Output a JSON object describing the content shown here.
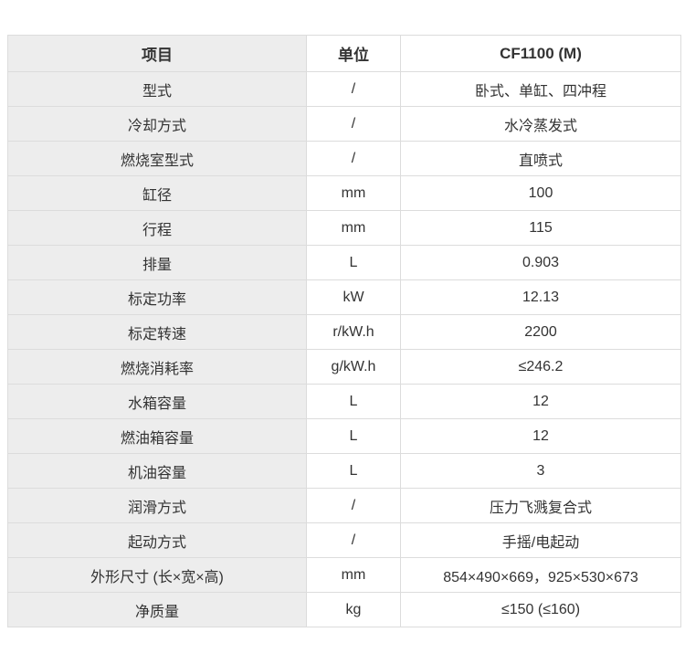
{
  "colors": {
    "item_column_bg": "#ededed",
    "border": "#dcdcdc",
    "text": "#333333",
    "page_bg": "#ffffff"
  },
  "table": {
    "headers": {
      "item": "项目",
      "unit": "单位",
      "model": "CF1100 (M)"
    },
    "rows": [
      {
        "item": "型式",
        "unit": "/",
        "value": "卧式、单缸、四冲程"
      },
      {
        "item": "冷却方式",
        "unit": "/",
        "value": "水冷蒸发式"
      },
      {
        "item": "燃烧室型式",
        "unit": "/",
        "value": "直喷式"
      },
      {
        "item": "缸径",
        "unit": "mm",
        "value": "100"
      },
      {
        "item": "行程",
        "unit": "mm",
        "value": "115"
      },
      {
        "item": "排量",
        "unit": "L",
        "value": "0.903"
      },
      {
        "item": "标定功率",
        "unit": "kW",
        "value": "12.13"
      },
      {
        "item": "标定转速",
        "unit": "r/kW.h",
        "value": "2200"
      },
      {
        "item": "燃烧消耗率",
        "unit": "g/kW.h",
        "value": "≤246.2"
      },
      {
        "item": "水箱容量",
        "unit": "L",
        "value": "12"
      },
      {
        "item": "燃油箱容量",
        "unit": "L",
        "value": "12"
      },
      {
        "item": "机油容量",
        "unit": "L",
        "value": "3"
      },
      {
        "item": "润滑方式",
        "unit": "/",
        "value": "压力飞溅复合式"
      },
      {
        "item": "起动方式",
        "unit": "/",
        "value": "手摇/电起动"
      },
      {
        "item": "外形尺寸 (长×宽×高)",
        "unit": "mm",
        "value": "854×490×669，925×530×673"
      },
      {
        "item": "净质量",
        "unit": "kg",
        "value": "≤150 (≤160)"
      }
    ]
  }
}
